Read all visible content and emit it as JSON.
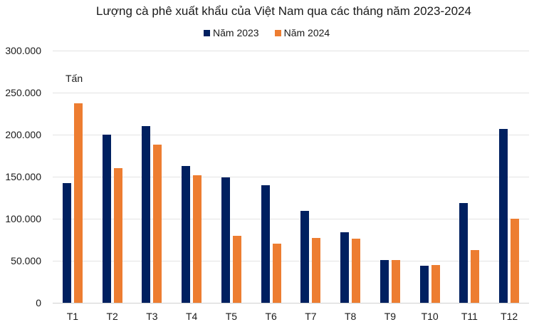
{
  "chart_data": {
    "type": "bar",
    "title": "Lượng cà phê xuất khẩu của Việt Nam qua các tháng năm 2023-2024",
    "xlabel": "",
    "ylabel": "Tấn",
    "ylim": [
      0,
      300000
    ],
    "yticks": [
      "0",
      "50.000",
      "100.000",
      "150.000",
      "200.000",
      "250.000",
      "300.000"
    ],
    "grid": true,
    "legend_position": "top",
    "categories": [
      "T1",
      "T2",
      "T3",
      "T4",
      "T5",
      "T6",
      "T7",
      "T8",
      "T9",
      "T10",
      "T11",
      "T12"
    ],
    "series": [
      {
        "name": "Năm 2023",
        "color": "#002060",
        "values": [
          142000,
          200000,
          210000,
          163000,
          149000,
          140000,
          109000,
          84000,
          51000,
          44000,
          119000,
          207000
        ]
      },
      {
        "name": "Năm 2024",
        "color": "#ed7d31",
        "values": [
          237000,
          160000,
          188000,
          152000,
          80000,
          70000,
          77000,
          76000,
          51000,
          45000,
          63000,
          100000
        ]
      }
    ]
  }
}
